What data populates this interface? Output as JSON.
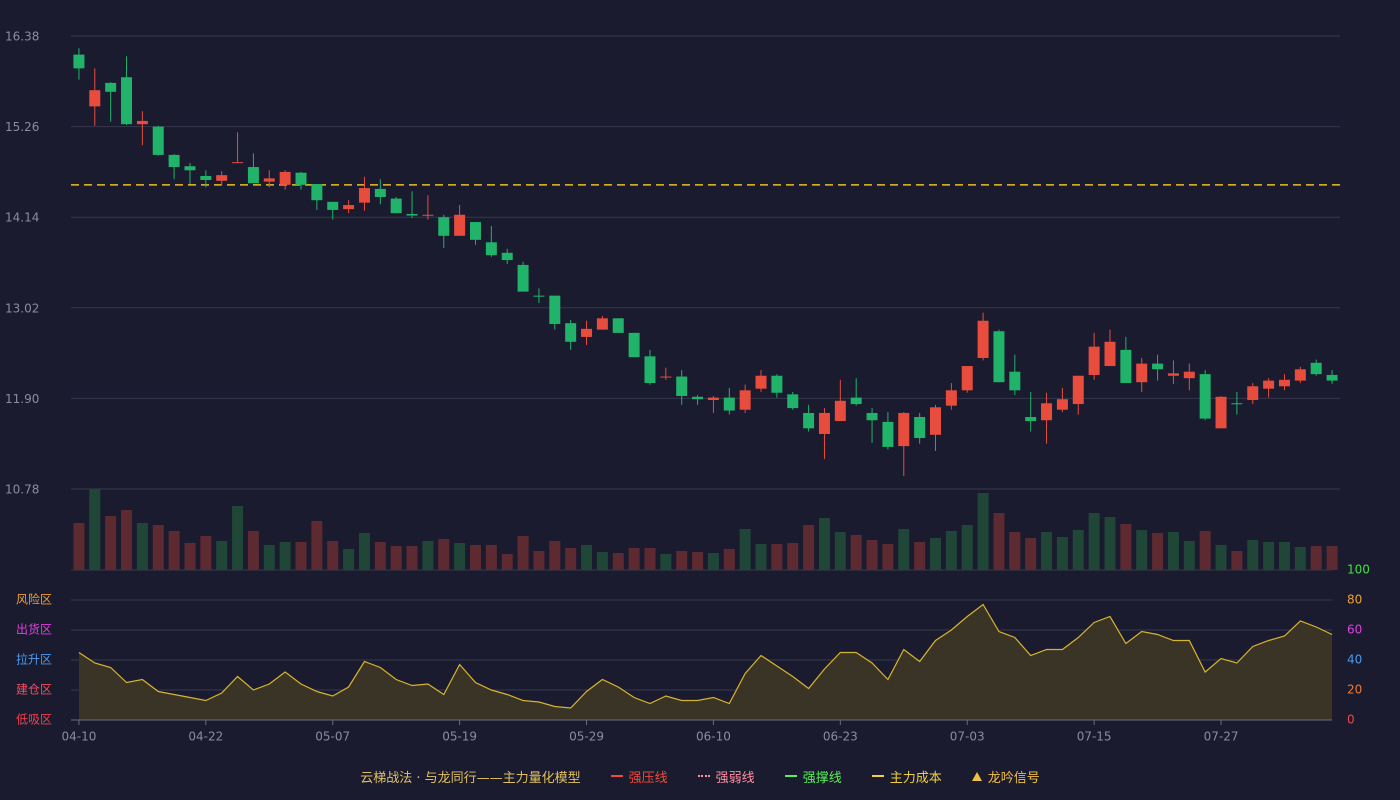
{
  "chart_data": {
    "type": "candlestick",
    "categories": [
      "04-10",
      null,
      null,
      null,
      null,
      null,
      null,
      null,
      "04-22",
      null,
      null,
      null,
      null,
      null,
      null,
      null,
      "05-07",
      null,
      null,
      null,
      null,
      null,
      null,
      null,
      "05-19",
      null,
      null,
      null,
      null,
      null,
      null,
      null,
      "05-29",
      null,
      null,
      null,
      null,
      null,
      null,
      null,
      "06-10",
      null,
      null,
      null,
      null,
      null,
      null,
      null,
      "06-23",
      null,
      null,
      null,
      null,
      null,
      null,
      null,
      "07-03",
      null,
      null,
      null,
      null,
      null,
      null,
      null,
      "07-15",
      null,
      null,
      null,
      null,
      null,
      null,
      null,
      "07-27",
      null,
      null,
      null,
      null,
      null,
      null,
      null
    ],
    "open": [
      16.15,
      15.51,
      15.8,
      15.87,
      15.29,
      15.26,
      14.91,
      14.77,
      14.65,
      14.59,
      14.81,
      14.76,
      14.58,
      14.54,
      14.69,
      14.55,
      14.33,
      14.24,
      14.32,
      14.49,
      14.37,
      14.18,
      14.16,
      14.14,
      13.91,
      14.08,
      13.83,
      13.7,
      13.55,
      13.17,
      13.17,
      12.83,
      12.66,
      12.75,
      12.89,
      12.71,
      12.42,
      12.16,
      12.17,
      11.92,
      11.88,
      11.91,
      11.76,
      12.02,
      12.18,
      11.95,
      11.72,
      11.46,
      11.62,
      11.91,
      11.72,
      11.61,
      11.31,
      11.67,
      11.45,
      11.81,
      12.0,
      12.4,
      12.73,
      12.23,
      11.67,
      11.63,
      11.76,
      11.83,
      12.19,
      12.3,
      12.5,
      12.1,
      12.33,
      12.18,
      12.15,
      12.2,
      11.53,
      11.84,
      11.88,
      12.02,
      12.05,
      12.12,
      12.34,
      12.19
    ],
    "high": [
      16.23,
      15.98,
      15.81,
      16.13,
      15.45,
      15.27,
      14.92,
      14.81,
      14.72,
      14.71,
      15.19,
      14.93,
      14.72,
      14.72,
      14.7,
      14.55,
      14.33,
      14.35,
      14.64,
      14.61,
      14.39,
      14.46,
      14.41,
      14.17,
      14.29,
      14.08,
      14.03,
      13.75,
      13.59,
      13.26,
      13.17,
      12.87,
      12.86,
      12.92,
      12.89,
      12.71,
      12.5,
      12.28,
      12.25,
      11.94,
      11.93,
      12.03,
      12.07,
      12.25,
      12.2,
      11.98,
      11.82,
      11.78,
      12.13,
      12.15,
      11.78,
      11.73,
      11.73,
      11.72,
      11.82,
      12.09,
      12.3,
      12.96,
      12.75,
      12.44,
      11.98,
      11.97,
      12.03,
      12.18,
      12.71,
      12.75,
      12.66,
      12.4,
      12.44,
      12.37,
      12.33,
      12.25,
      11.93,
      11.98,
      12.09,
      12.15,
      12.2,
      12.29,
      12.38,
      12.25
    ],
    "low": [
      15.84,
      15.27,
      15.32,
      15.28,
      15.03,
      14.9,
      14.61,
      14.55,
      14.51,
      14.53,
      14.81,
      14.56,
      14.51,
      14.48,
      14.48,
      14.23,
      14.11,
      14.19,
      14.22,
      14.3,
      14.19,
      14.13,
      14.11,
      13.76,
      13.91,
      13.8,
      13.65,
      13.56,
      13.22,
      13.08,
      12.75,
      12.5,
      12.56,
      12.75,
      12.71,
      12.41,
      12.07,
      12.13,
      11.82,
      11.82,
      11.72,
      11.7,
      11.72,
      11.98,
      11.91,
      11.76,
      11.49,
      11.15,
      11.62,
      11.81,
      11.35,
      11.27,
      10.94,
      11.34,
      11.25,
      11.76,
      11.97,
      12.37,
      12.1,
      11.94,
      11.49,
      11.34,
      11.73,
      11.7,
      12.13,
      12.3,
      12.09,
      11.98,
      12.12,
      12.08,
      12.0,
      11.63,
      11.53,
      11.7,
      11.83,
      11.91,
      12.0,
      12.09,
      12.18,
      12.08
    ],
    "close": [
      15.98,
      15.71,
      15.69,
      15.29,
      15.33,
      14.91,
      14.76,
      14.72,
      14.6,
      14.66,
      14.82,
      14.56,
      14.62,
      14.7,
      14.54,
      14.35,
      14.23,
      14.29,
      14.5,
      14.39,
      14.19,
      14.16,
      14.17,
      13.91,
      14.17,
      13.86,
      13.67,
      13.61,
      13.22,
      13.16,
      12.82,
      12.6,
      12.76,
      12.89,
      12.71,
      12.41,
      12.09,
      12.17,
      11.93,
      11.89,
      11.91,
      11.75,
      12.0,
      12.18,
      11.97,
      11.78,
      11.53,
      11.72,
      11.87,
      11.83,
      11.63,
      11.3,
      11.72,
      11.41,
      11.79,
      12.0,
      12.3,
      12.86,
      12.1,
      12.0,
      11.62,
      11.84,
      11.89,
      12.18,
      12.54,
      12.6,
      12.09,
      12.33,
      12.26,
      12.21,
      12.23,
      11.65,
      11.92,
      11.83,
      12.05,
      12.12,
      12.13,
      12.26,
      12.2,
      12.12
    ],
    "volume": [
      47,
      81,
      54,
      60,
      47,
      45,
      39,
      27,
      34,
      29,
      64,
      39,
      25,
      28,
      28,
      49,
      29,
      21,
      37,
      28,
      24,
      24,
      29,
      31,
      27,
      25,
      25,
      16,
      34,
      19,
      29,
      22,
      25,
      18,
      17,
      22,
      22,
      16,
      19,
      18,
      17,
      21,
      41,
      26,
      26,
      27,
      45,
      52,
      38,
      35,
      30,
      26,
      41,
      28,
      32,
      39,
      45,
      77,
      57,
      38,
      32,
      38,
      33,
      40,
      57,
      53,
      46,
      40,
      37,
      38,
      29,
      39,
      25,
      19,
      30,
      28,
      28,
      23,
      24,
      24
    ],
    "up_color": "#e84c3d",
    "down_color": "#21b36a",
    "volume_up_color": "#1f4637",
    "volume_down_color": "#5e2a31",
    "ylim": [
      10.78,
      16.38
    ],
    "yticks": [
      10.78,
      {
        "value": 11.9,
        "label": "11.90"
      },
      13.02,
      14.14,
      15.26,
      16.38
    ],
    "grid": true,
    "main_cost": {
      "value": 14.54,
      "color": "#e8c020"
    },
    "indicator": {
      "values": [
        45,
        38,
        35,
        25,
        27,
        19,
        17,
        15,
        13,
        18,
        29,
        20,
        24,
        32,
        24,
        19,
        16,
        22,
        39,
        35,
        27,
        23,
        24,
        17,
        37,
        25,
        20,
        17,
        13,
        12,
        9,
        8,
        19,
        27,
        22,
        15,
        11,
        16,
        13,
        13,
        15,
        11,
        31,
        43,
        36,
        29,
        21,
        34,
        45,
        45,
        38,
        27,
        47,
        39,
        53,
        60,
        69,
        77,
        59,
        55,
        43,
        47,
        47,
        55,
        65,
        69,
        51,
        59,
        57,
        53,
        53,
        32,
        41,
        38,
        49,
        53,
        56,
        66,
        62,
        57
      ],
      "color": "#d8b42c",
      "fill": "#3a3427",
      "ylim": [
        0,
        100
      ],
      "yticks": [
        0,
        20,
        40,
        60,
        80,
        100
      ],
      "ytick_colors": [
        "#f04a4a",
        "#f07a30",
        "#4a9af0",
        "#e040e0",
        "#f0a030",
        "#40e040"
      ],
      "zones": [
        {
          "value": 80,
          "label": "风险区",
          "color": "#f0a030"
        },
        {
          "value": 60,
          "label": "出货区",
          "color": "#e040e0"
        },
        {
          "value": 40,
          "label": "拉升区",
          "color": "#4a9af0"
        },
        {
          "value": 20,
          "label": "建仓区",
          "color": "#f05060"
        },
        {
          "value": 0,
          "label": "低吸区",
          "color": "#f04050"
        }
      ]
    },
    "legend": {
      "title": "云梯战法 · 与龙同行——主力量化模型",
      "title_color": "#e0c060",
      "items": [
        {
          "label": "强压线",
          "color": "#f04a3a",
          "style": "solid"
        },
        {
          "label": "强弱线",
          "color": "#ff8fa0",
          "style": "dotted"
        },
        {
          "label": "强撑线",
          "color": "#5af05a",
          "style": "solid"
        },
        {
          "label": "主力成本",
          "color": "#f0d040",
          "style": "dashed"
        },
        {
          "label": "龙吟信号",
          "color": "#f0c040",
          "style": "triangle"
        }
      ]
    }
  }
}
